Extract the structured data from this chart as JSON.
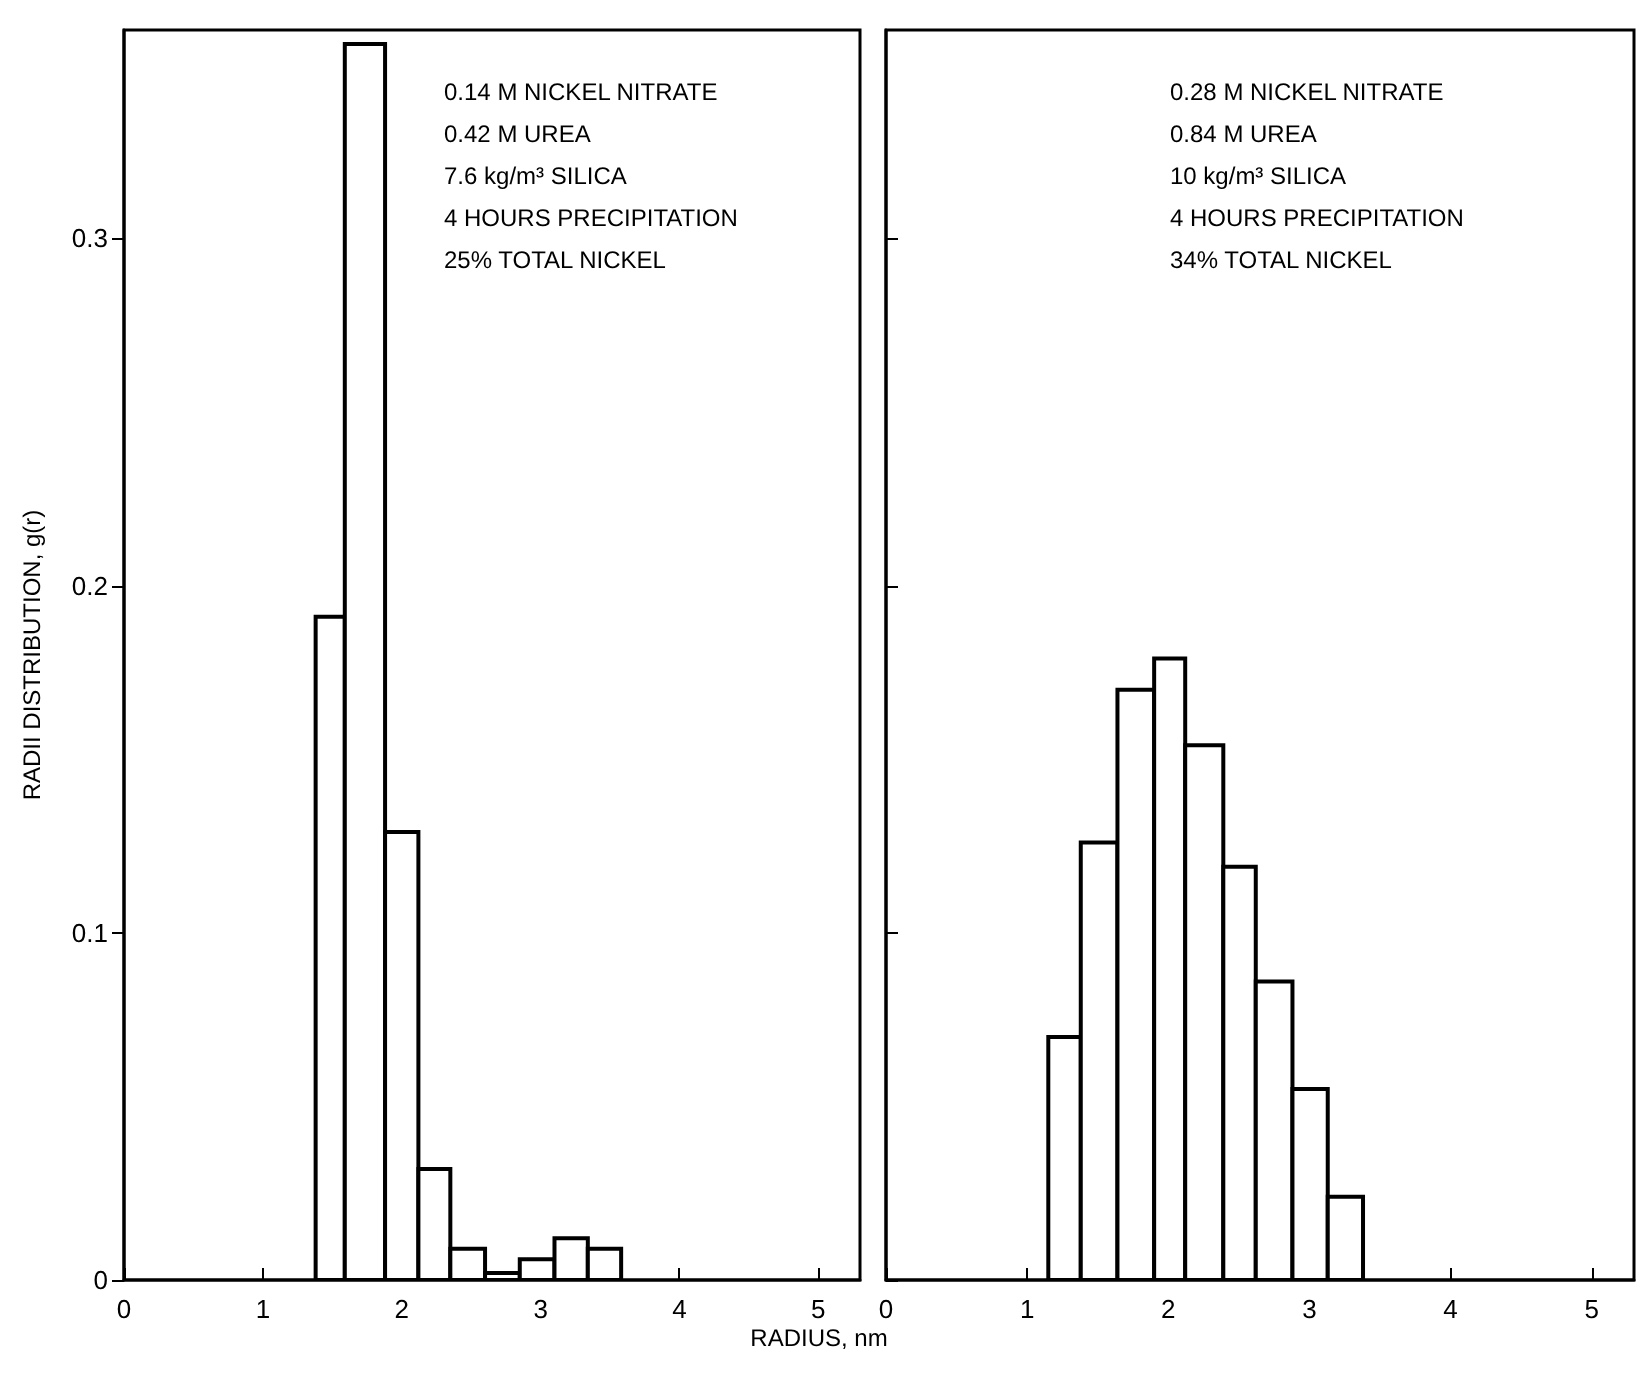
{
  "chart_data": [
    {
      "type": "histogram",
      "ylabel": "RADII DISTRIBUTION, g(r)",
      "xlabel": "RADIUS, nm",
      "bins": [
        1.38,
        1.59,
        1.88,
        2.12,
        2.35,
        2.6,
        2.85,
        3.1,
        3.34,
        3.58
      ],
      "values": [
        0.191,
        0.356,
        0.129,
        0.032,
        0.009,
        0.002,
        0.006,
        0.012,
        0.009
      ],
      "color": "#000000",
      "xlim": [
        0,
        5.3
      ],
      "xticks": [
        0,
        1,
        2,
        3,
        4,
        5
      ],
      "ylim": [
        0,
        0.36
      ],
      "yticks": [
        0,
        0.1,
        0.2,
        0.3
      ],
      "grid": false,
      "annotations": [
        "0.14 M NICKEL NITRATE",
        "0.42 M UREA",
        "7.6 kg/m³ SILICA",
        "4 HOURS PRECIPITATION",
        "25% TOTAL NICKEL"
      ]
    },
    {
      "type": "histogram",
      "bins": [
        1.15,
        1.38,
        1.64,
        1.9,
        2.12,
        2.39,
        2.62,
        2.88,
        3.13,
        3.38
      ],
      "values": [
        0.07,
        0.126,
        0.17,
        0.179,
        0.154,
        0.119,
        0.086,
        0.055,
        0.024
      ],
      "color": "#000000",
      "xlim": [
        0,
        5.3
      ],
      "xticks": [
        0,
        1,
        2,
        3,
        4,
        5
      ],
      "ylim": [
        0,
        0.36
      ],
      "yticks": [
        0,
        0.1,
        0.2,
        0.3
      ],
      "grid": false,
      "tick_labels": "x",
      "annotations": [
        "0.28 M NICKEL NITRATE",
        "0.84 M UREA",
        "10 kg/m³ SILICA",
        "4 HOURS PRECIPITATION",
        "34% TOTAL NICKEL"
      ]
    }
  ]
}
